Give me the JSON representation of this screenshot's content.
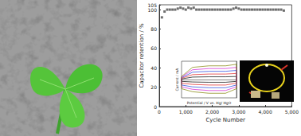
{
  "chart_data": [
    {
      "type": "scatter",
      "x_label": "Cycle Number",
      "y_label": "Capacitor retention / %",
      "x": [
        100,
        200,
        300,
        400,
        500,
        600,
        700,
        800,
        900,
        1000,
        1100,
        1200,
        1300,
        1400,
        1500,
        1600,
        1700,
        1800,
        1900,
        2000,
        2100,
        2200,
        2300,
        2400,
        2500,
        2600,
        2700,
        2800,
        2900,
        3000,
        3100,
        3200,
        3300,
        3400,
        3500,
        3600,
        3700,
        3800,
        3900,
        4000,
        4100,
        4200,
        4300,
        4400,
        4500,
        4600,
        4700
      ],
      "values": [
        92,
        98,
        100,
        100,
        100,
        100,
        101,
        102,
        101,
        100,
        102,
        101,
        102,
        100,
        100,
        100,
        100,
        100,
        100,
        100,
        100,
        100,
        100,
        100,
        100,
        100,
        100,
        101,
        102,
        101,
        100,
        100,
        100,
        100,
        100,
        100,
        100,
        100,
        100,
        100,
        100,
        100,
        100,
        100,
        100,
        100,
        99
      ],
      "color": "#4a4a4a",
      "marker": "square",
      "xlim": [
        0,
        5000
      ],
      "xticks": [
        0,
        1000,
        2000,
        3000,
        4000,
        5000
      ],
      "ylim": [
        0,
        105
      ],
      "yticks": [
        0,
        20,
        40,
        60,
        80,
        100
      ],
      "grid": false
    },
    {
      "type": "line",
      "x_label": "Potential / V vs. Hg/ HgO",
      "y_label": "Current / mA",
      "xlim": [
        -1.0,
        0.0
      ],
      "ylim": [
        -6,
        6
      ],
      "tick_labels": false,
      "grid": false,
      "series": [
        {
          "color": "#000000",
          "x": [
            -1.0,
            -0.8,
            -0.5,
            -0.2,
            0.0,
            0.0,
            -0.2,
            -0.5,
            -0.8,
            -1.0,
            -1.0
          ],
          "values": [
            0.2,
            0.8,
            0.9,
            0.9,
            1.0,
            -0.6,
            -0.9,
            -0.9,
            -0.8,
            -0.6,
            0.2
          ]
        },
        {
          "color": "#e02020",
          "x": [
            -1.0,
            -0.8,
            -0.5,
            -0.2,
            0.0,
            0.0,
            -0.2,
            -0.5,
            -0.8,
            -1.0,
            -1.0
          ],
          "values": [
            0.4,
            1.6,
            1.8,
            1.8,
            2.0,
            -1.2,
            -1.8,
            -1.8,
            -1.6,
            -1.2,
            0.4
          ]
        },
        {
          "color": "#2040e0",
          "x": [
            -1.0,
            -0.8,
            -0.5,
            -0.2,
            0.0,
            0.0,
            -0.2,
            -0.5,
            -0.8,
            -1.0,
            -1.0
          ],
          "values": [
            0.6,
            2.4,
            2.7,
            2.7,
            3.0,
            -1.8,
            -2.7,
            -2.7,
            -2.4,
            -1.8,
            0.6
          ]
        },
        {
          "color": "#d020d0",
          "x": [
            -1.0,
            -0.8,
            -0.5,
            -0.2,
            0.0,
            0.0,
            -0.2,
            -0.5,
            -0.8,
            -1.0,
            -1.0
          ],
          "values": [
            0.8,
            3.2,
            3.6,
            3.6,
            4.0,
            -2.4,
            -3.6,
            -3.6,
            -3.2,
            -2.4,
            0.8
          ]
        },
        {
          "color": "#808000",
          "x": [
            -1.0,
            -0.8,
            -0.5,
            -0.2,
            0.0,
            0.0,
            -0.2,
            -0.5,
            -0.8,
            -1.0,
            -1.0
          ],
          "values": [
            1.0,
            4.0,
            4.5,
            4.5,
            5.0,
            -3.0,
            -4.5,
            -4.5,
            -4.0,
            -3.0,
            1.0
          ]
        }
      ]
    }
  ]
}
